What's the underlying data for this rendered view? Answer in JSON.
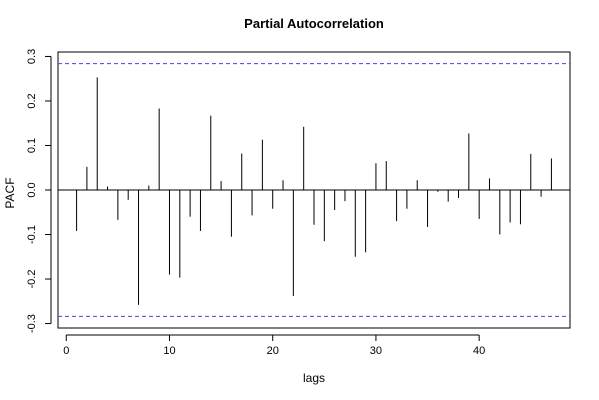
{
  "chart_data": {
    "type": "bar",
    "subtype": "pacf-spike",
    "title": "Partial Autocorrelation",
    "xlabel": "lags",
    "ylabel": "PACF",
    "xlim": [
      -0.8,
      48.8
    ],
    "ylim": [
      -0.31,
      0.31
    ],
    "xticks": [
      0,
      10,
      20,
      30,
      40
    ],
    "yticks": [
      -0.3,
      -0.2,
      -0.1,
      0.0,
      0.1,
      0.2,
      0.3
    ],
    "ytick_labels": [
      "-0.3",
      "-0.2",
      "-0.1",
      "0.0",
      "0.1",
      "0.2",
      "0.3"
    ],
    "confidence_bounds": [
      0.284,
      -0.284
    ],
    "bound_color": "#4444ee",
    "grid": false,
    "lags": [
      1,
      2,
      3,
      4,
      5,
      6,
      7,
      8,
      9,
      10,
      11,
      12,
      13,
      14,
      15,
      16,
      17,
      18,
      19,
      20,
      21,
      22,
      23,
      24,
      25,
      26,
      27,
      28,
      29,
      30,
      31,
      32,
      33,
      34,
      35,
      36,
      37,
      38,
      39,
      40,
      41,
      42,
      43,
      44,
      45,
      46,
      47
    ],
    "values": [
      -0.092,
      0.052,
      0.253,
      0.008,
      -0.067,
      -0.022,
      -0.258,
      0.01,
      0.183,
      -0.19,
      -0.197,
      -0.06,
      -0.092,
      0.167,
      0.02,
      -0.105,
      0.082,
      -0.057,
      0.113,
      -0.042,
      0.022,
      -0.238,
      0.142,
      -0.078,
      -0.115,
      -0.045,
      -0.025,
      -0.15,
      -0.14,
      0.06,
      0.065,
      -0.07,
      -0.042,
      0.022,
      -0.083,
      -0.004,
      -0.026,
      -0.018,
      0.127,
      -0.065,
      0.026,
      -0.1,
      -0.073,
      -0.077,
      0.081,
      -0.015,
      0.071
    ]
  }
}
